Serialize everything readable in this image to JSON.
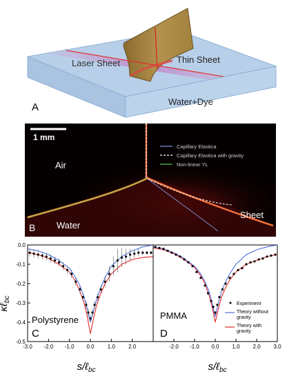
{
  "panel_a": {
    "letter": "A",
    "labels": {
      "laser_sheet": "Laser Sheet",
      "thin_sheet": "Thin Sheet",
      "water_dye": "Water+Dye"
    }
  },
  "panel_b": {
    "letter": "B",
    "scale_bar": "1 mm",
    "air": "Air",
    "water": "Water",
    "sheet": "Sheet",
    "legend": [
      {
        "label": "Capillary Elastica",
        "color": "#7f8fd6",
        "style": "solid"
      },
      {
        "label": "Capillary Elastica with gravity",
        "color": "#ffffff",
        "style": "dashed"
      },
      {
        "label": "Non-linear YL",
        "color": "#56c456",
        "style": "solid"
      }
    ]
  },
  "chart_data": [
    {
      "type": "scatter",
      "panel": "C",
      "title": "",
      "annotation": "Polystyrene",
      "xlabel": "s/ℓ_bc",
      "ylabel": "κℓ_bc",
      "xlim": [
        -3.0,
        3.0
      ],
      "ylim": [
        -0.5,
        0.0
      ],
      "x_ticks": [
        "-3.0",
        "-2.0",
        "-1.0",
        "0.0",
        "1.0",
        "2.0"
      ],
      "y_ticks": [
        "0.0",
        "-0.1",
        "-0.2",
        "-0.3",
        "-0.4",
        "-0.5"
      ],
      "experiment": {
        "x": [
          -2.9,
          -2.7,
          -2.5,
          -2.3,
          -2.1,
          -1.9,
          -1.7,
          -1.5,
          -1.3,
          -1.1,
          -0.9,
          -0.7,
          -0.5,
          -0.35,
          -0.2,
          -0.1,
          0.0,
          0.1,
          0.2,
          0.35,
          0.5,
          0.7,
          0.9,
          1.1,
          1.3,
          1.5,
          1.7,
          1.9,
          2.1,
          2.3,
          2.5,
          2.7,
          2.9
        ],
        "y": [
          -0.04,
          -0.045,
          -0.05,
          -0.055,
          -0.06,
          -0.07,
          -0.08,
          -0.09,
          -0.11,
          -0.13,
          -0.15,
          -0.19,
          -0.23,
          -0.27,
          -0.31,
          -0.35,
          -0.38,
          -0.35,
          -0.31,
          -0.27,
          -0.23,
          -0.19,
          -0.15,
          -0.11,
          -0.08,
          -0.065,
          -0.06,
          -0.05,
          -0.045,
          -0.04,
          -0.04,
          -0.04,
          -0.04
        ],
        "err": [
          0.02,
          0.02,
          0.02,
          0.02,
          0.02,
          0.02,
          0.02,
          0.02,
          0.02,
          0.02,
          0.02,
          0.02,
          0.02,
          0.02,
          0.02,
          0.02,
          0.02,
          0.02,
          0.02,
          0.02,
          0.02,
          0.03,
          0.04,
          0.05,
          0.06,
          0.05,
          0.04,
          0.03,
          0.02,
          0.02,
          0.01,
          0.01,
          0.01
        ]
      },
      "theory_without_gravity": {
        "x": [
          -3.0,
          -2.5,
          -2.0,
          -1.5,
          -1.0,
          -0.7,
          -0.5,
          -0.3,
          -0.15,
          0.0,
          0.15,
          0.3,
          0.5,
          0.7,
          1.0,
          1.5,
          2.0,
          2.5,
          3.0
        ],
        "y": [
          -0.02,
          -0.03,
          -0.05,
          -0.08,
          -0.12,
          -0.17,
          -0.21,
          -0.27,
          -0.33,
          -0.4,
          -0.34,
          -0.28,
          -0.22,
          -0.17,
          -0.11,
          -0.06,
          -0.03,
          -0.01,
          0.0
        ]
      },
      "theory_with_gravity": {
        "x": [
          -3.0,
          -2.5,
          -2.0,
          -1.5,
          -1.0,
          -0.7,
          -0.5,
          -0.3,
          -0.15,
          0.0,
          0.15,
          0.3,
          0.5,
          0.7,
          1.0,
          1.5,
          2.0,
          2.5,
          3.0
        ],
        "y": [
          -0.04,
          -0.05,
          -0.07,
          -0.1,
          -0.14,
          -0.19,
          -0.24,
          -0.3,
          -0.37,
          -0.46,
          -0.38,
          -0.31,
          -0.25,
          -0.2,
          -0.15,
          -0.1,
          -0.075,
          -0.065,
          -0.06
        ]
      }
    },
    {
      "type": "scatter",
      "panel": "D",
      "title": "",
      "annotation": "PMMA",
      "xlabel": "s/ℓ_bc",
      "ylabel": "",
      "xlim": [
        -3.0,
        3.0
      ],
      "ylim": [
        -0.5,
        0.0
      ],
      "x_ticks": [
        "-2.0",
        "-1.0",
        "0.0",
        "1.0",
        "2.0",
        "3.0"
      ],
      "legend": [
        "Experiment",
        "Theory without gravity",
        "Theory with gravity"
      ],
      "experiment": {
        "x": [
          -2.9,
          -2.7,
          -2.5,
          -2.3,
          -2.1,
          -1.9,
          -1.7,
          -1.5,
          -1.3,
          -1.1,
          -0.9,
          -0.7,
          -0.5,
          -0.35,
          -0.2,
          -0.1,
          0.0,
          0.1,
          0.2,
          0.35,
          0.5,
          0.7,
          0.9,
          1.1,
          1.3,
          1.5,
          1.7,
          1.9,
          2.1,
          2.3,
          2.5,
          2.7,
          2.9
        ],
        "y": [
          -0.01,
          -0.015,
          -0.02,
          -0.03,
          -0.04,
          -0.05,
          -0.06,
          -0.075,
          -0.09,
          -0.11,
          -0.14,
          -0.17,
          -0.21,
          -0.25,
          -0.29,
          -0.32,
          -0.35,
          -0.31,
          -0.27,
          -0.23,
          -0.2,
          -0.17,
          -0.15,
          -0.13,
          -0.12,
          -0.1,
          -0.09,
          -0.085,
          -0.075,
          -0.07,
          -0.06,
          -0.055,
          -0.05
        ]
      },
      "theory_without_gravity": {
        "x": [
          -3.0,
          -2.5,
          -2.0,
          -1.5,
          -1.0,
          -0.7,
          -0.5,
          -0.3,
          -0.15,
          0.0,
          0.15,
          0.3,
          0.5,
          0.7,
          1.0,
          1.5,
          2.0,
          2.5,
          3.0
        ],
        "y": [
          -0.01,
          -0.02,
          -0.04,
          -0.07,
          -0.11,
          -0.15,
          -0.19,
          -0.24,
          -0.3,
          -0.37,
          -0.3,
          -0.24,
          -0.19,
          -0.15,
          -0.1,
          -0.05,
          -0.025,
          -0.01,
          0.0
        ]
      },
      "theory_with_gravity": {
        "x": [
          -3.0,
          -2.5,
          -2.0,
          -1.5,
          -1.0,
          -0.7,
          -0.5,
          -0.3,
          -0.15,
          0.0,
          0.15,
          0.3,
          0.5,
          0.7,
          1.0,
          1.5,
          2.0,
          2.5,
          3.0
        ],
        "y": [
          -0.015,
          -0.025,
          -0.045,
          -0.075,
          -0.115,
          -0.16,
          -0.2,
          -0.26,
          -0.32,
          -0.4,
          -0.33,
          -0.27,
          -0.22,
          -0.18,
          -0.14,
          -0.1,
          -0.08,
          -0.06,
          -0.05
        ]
      }
    }
  ],
  "legend_labels": {
    "experiment": "Experiment",
    "without_1": "Theory without",
    "without_2": "gravity",
    "with_1": "Theory with",
    "with_2": "gravity"
  },
  "colors": {
    "experiment": "#000000",
    "theory_without_gravity": "#4d6fe0",
    "theory_with_gravity": "#e02a2a"
  }
}
